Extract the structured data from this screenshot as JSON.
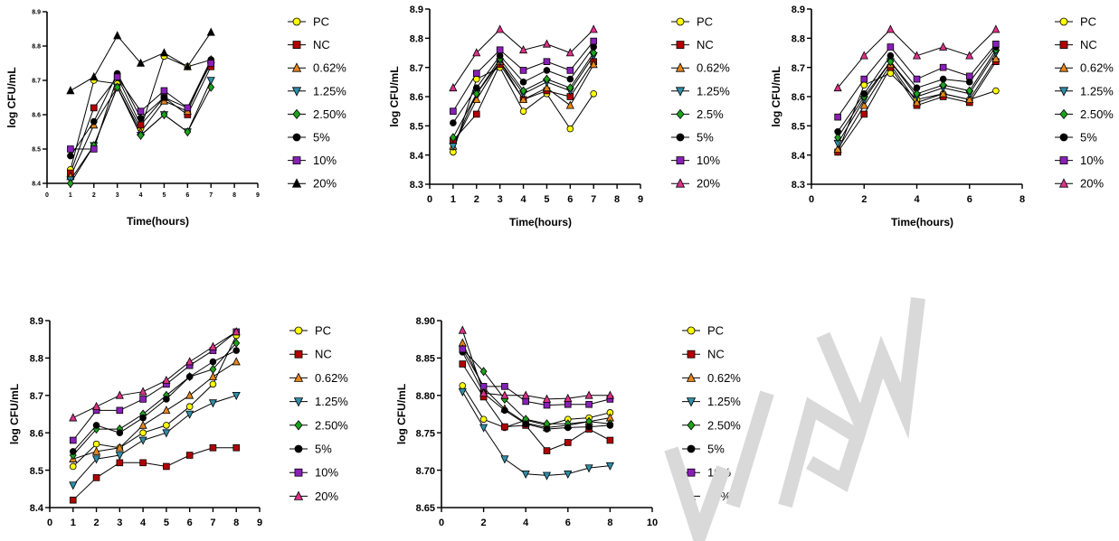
{
  "colors": {
    "PC": "#FFFF00",
    "NC": "#B30000",
    "0.62%": "#E8861A",
    "1.25%": "#2E8FA8",
    "2.5%": "#1BA31B",
    "5%": "#000000",
    "10%": "#8A1FB8",
    "20%": "#E0318A",
    "20%_chart1": "#000000",
    "line": "#000000",
    "watermark": "#D9D9D9"
  },
  "chart_data": [
    {
      "type": "line",
      "title": "",
      "xlabel": "Time(hours)",
      "ylabel": "log CFU/mL",
      "xlim": [
        0,
        9
      ],
      "ylim": [
        8.4,
        8.9
      ],
      "xticks": [
        "0",
        "1",
        "2",
        "3",
        "4",
        "5",
        "6",
        "7",
        "8",
        "9"
      ],
      "yticks": [
        "8.4",
        "8.5",
        "8.6",
        "8.7",
        "8.8",
        "8.9"
      ],
      "legend_position": "right",
      "x": [
        1,
        2,
        3,
        4,
        5,
        6,
        7
      ],
      "series": [
        {
          "name": "PC",
          "marker": "circle",
          "color_key": "PC",
          "values": [
            8.44,
            8.7,
            8.69,
            8.56,
            8.77,
            8.74,
            8.76
          ]
        },
        {
          "name": "NC",
          "marker": "square",
          "color_key": "NC",
          "values": [
            8.43,
            8.62,
            8.71,
            8.57,
            8.65,
            8.6,
            8.74
          ]
        },
        {
          "name": "0.62%",
          "marker": "triangle-up",
          "color_key": "0.62%",
          "values": [
            8.42,
            8.57,
            8.68,
            8.55,
            8.64,
            8.61,
            8.76
          ]
        },
        {
          "name": "1.25%",
          "marker": "triangle-down",
          "color_key": "1.25%",
          "values": [
            8.41,
            8.51,
            8.68,
            8.54,
            8.6,
            8.55,
            8.7
          ]
        },
        {
          "name": "2.50%",
          "marker": "diamond",
          "color_key": "2.5%",
          "values": [
            8.4,
            8.51,
            8.68,
            8.54,
            8.6,
            8.55,
            8.68
          ]
        },
        {
          "name": "5%",
          "marker": "circle",
          "color_key": "5%",
          "values": [
            8.48,
            8.58,
            8.72,
            8.59,
            8.65,
            8.62,
            8.76
          ]
        },
        {
          "name": "10%",
          "marker": "square",
          "color_key": "10%",
          "values": [
            8.5,
            8.5,
            8.71,
            8.61,
            8.67,
            8.62,
            8.75
          ]
        },
        {
          "name": "20%",
          "marker": "triangle-up",
          "color_key": "20%_chart1",
          "values": [
            8.67,
            8.71,
            8.83,
            8.75,
            8.78,
            8.74,
            8.84
          ]
        }
      ]
    },
    {
      "type": "line",
      "title": "",
      "xlabel": "Time(hours)",
      "ylabel": "log CFU/mL",
      "xlim": [
        0,
        9
      ],
      "ylim": [
        8.3,
        8.9
      ],
      "xticks": [
        "0",
        "1",
        "2",
        "3",
        "4",
        "5",
        "6",
        "7",
        "8",
        "9"
      ],
      "yticks": [
        "8.3",
        "8.4",
        "8.5",
        "8.6",
        "8.7",
        "8.8",
        "8.9"
      ],
      "legend_position": "right",
      "x": [
        1,
        2,
        3,
        4,
        5,
        6,
        7
      ],
      "series": [
        {
          "name": "PC",
          "marker": "circle",
          "color_key": "PC",
          "values": [
            8.41,
            8.66,
            8.7,
            8.55,
            8.61,
            8.49,
            8.61
          ]
        },
        {
          "name": "NC",
          "marker": "square",
          "color_key": "NC",
          "values": [
            8.45,
            8.54,
            8.71,
            8.59,
            8.62,
            8.6,
            8.72
          ]
        },
        {
          "name": "0.62%",
          "marker": "triangle-up",
          "color_key": "0.62%",
          "values": [
            8.43,
            8.59,
            8.72,
            8.59,
            8.63,
            8.57,
            8.71
          ]
        },
        {
          "name": "1.25%",
          "marker": "triangle-down",
          "color_key": "1.25%",
          "values": [
            8.43,
            8.61,
            8.72,
            8.61,
            8.65,
            8.62,
            8.74
          ]
        },
        {
          "name": "2.5%",
          "marker": "diamond",
          "color_key": "2.5%",
          "values": [
            8.46,
            8.61,
            8.73,
            8.62,
            8.66,
            8.63,
            8.75
          ]
        },
        {
          "name": "5%",
          "marker": "circle",
          "color_key": "5%",
          "values": [
            8.51,
            8.63,
            8.74,
            8.65,
            8.69,
            8.66,
            8.77
          ]
        },
        {
          "name": "10%",
          "marker": "square",
          "color_key": "10%",
          "values": [
            8.55,
            8.68,
            8.76,
            8.69,
            8.72,
            8.69,
            8.79
          ]
        },
        {
          "name": "20%",
          "marker": "triangle-up",
          "color_key": "20%",
          "values": [
            8.63,
            8.75,
            8.83,
            8.76,
            8.78,
            8.75,
            8.83
          ]
        }
      ]
    },
    {
      "type": "line",
      "title": "",
      "xlabel": "Time(hours)",
      "ylabel": "log CFU/mL",
      "xlim": [
        0,
        8
      ],
      "ylim": [
        8.3,
        8.9
      ],
      "xticks": [
        "0",
        "2",
        "4",
        "6",
        "8"
      ],
      "yticks": [
        "8.3",
        "8.4",
        "8.5",
        "8.6",
        "8.7",
        "8.8",
        "8.9"
      ],
      "legend_position": "right",
      "x": [
        1,
        2,
        3,
        4,
        5,
        6,
        7
      ],
      "series": [
        {
          "name": "PC",
          "marker": "circle",
          "color_key": "PC",
          "values": [
            8.41,
            8.64,
            8.68,
            8.59,
            8.61,
            8.59,
            8.62
          ]
        },
        {
          "name": "NC",
          "marker": "square",
          "color_key": "NC",
          "values": [
            8.41,
            8.54,
            8.7,
            8.57,
            8.6,
            8.58,
            8.72
          ]
        },
        {
          "name": "0.62%",
          "marker": "triangle-up",
          "color_key": "0.62%",
          "values": [
            8.42,
            8.57,
            8.71,
            8.58,
            8.61,
            8.59,
            8.73
          ]
        },
        {
          "name": "1.25%",
          "marker": "triangle-down",
          "color_key": "1.25%",
          "values": [
            8.44,
            8.59,
            8.72,
            8.6,
            8.63,
            8.61,
            8.75
          ]
        },
        {
          "name": "2.50%",
          "marker": "diamond",
          "color_key": "2.5%",
          "values": [
            8.46,
            8.6,
            8.72,
            8.61,
            8.64,
            8.62,
            8.76
          ]
        },
        {
          "name": "5%",
          "marker": "circle",
          "color_key": "5%",
          "values": [
            8.48,
            8.61,
            8.74,
            8.63,
            8.66,
            8.65,
            8.77
          ]
        },
        {
          "name": "10%",
          "marker": "square",
          "color_key": "10%",
          "values": [
            8.53,
            8.66,
            8.77,
            8.66,
            8.7,
            8.67,
            8.78
          ]
        },
        {
          "name": "20%",
          "marker": "triangle-up",
          "color_key": "20%",
          "values": [
            8.63,
            8.74,
            8.83,
            8.74,
            8.77,
            8.74,
            8.83
          ]
        }
      ]
    },
    {
      "type": "line",
      "title": "",
      "xlabel": "Time(hours)",
      "ylabel": "log CFU/mL",
      "xlim": [
        0,
        9
      ],
      "ylim": [
        8.4,
        8.9
      ],
      "xticks": [
        "0",
        "1",
        "2",
        "3",
        "4",
        "5",
        "6",
        "7",
        "8",
        "9"
      ],
      "yticks": [
        "8.4",
        "8.5",
        "8.6",
        "8.7",
        "8.8",
        "8.9"
      ],
      "legend_position": "right",
      "x": [
        1,
        2,
        3,
        4,
        5,
        6,
        7,
        8
      ],
      "series": [
        {
          "name": "PC",
          "marker": "circle",
          "color_key": "PC",
          "values": [
            8.51,
            8.57,
            8.56,
            8.6,
            8.62,
            8.67,
            8.73,
            8.86
          ]
        },
        {
          "name": "NC",
          "marker": "square",
          "color_key": "NC",
          "values": [
            8.42,
            8.48,
            8.52,
            8.52,
            8.51,
            8.54,
            8.56,
            8.56
          ]
        },
        {
          "name": "0.62%",
          "marker": "triangle-up",
          "color_key": "0.62%",
          "values": [
            8.53,
            8.55,
            8.56,
            8.62,
            8.66,
            8.7,
            8.75,
            8.79
          ]
        },
        {
          "name": "1.25%",
          "marker": "triangle-down",
          "color_key": "1.25%",
          "values": [
            8.46,
            8.53,
            8.54,
            8.58,
            8.6,
            8.65,
            8.68,
            8.7
          ]
        },
        {
          "name": "2.50%",
          "marker": "diamond",
          "color_key": "2.5%",
          "values": [
            8.54,
            8.61,
            8.61,
            8.65,
            8.7,
            8.75,
            8.77,
            8.84
          ]
        },
        {
          "name": "5%",
          "marker": "circle",
          "color_key": "5%",
          "values": [
            8.55,
            8.62,
            8.6,
            8.64,
            8.69,
            8.75,
            8.79,
            8.82
          ]
        },
        {
          "name": "10%",
          "marker": "square",
          "color_key": "10%",
          "values": [
            8.58,
            8.66,
            8.66,
            8.69,
            8.73,
            8.78,
            8.82,
            8.87
          ]
        },
        {
          "name": "20%",
          "marker": "triangle-up",
          "color_key": "20%",
          "values": [
            8.64,
            8.67,
            8.7,
            8.71,
            8.74,
            8.79,
            8.83,
            8.87
          ]
        }
      ]
    },
    {
      "type": "line",
      "title": "",
      "xlabel": "Time(hours)",
      "ylabel": "log CFU/mL",
      "xlim": [
        0,
        10
      ],
      "ylim": [
        8.65,
        8.9
      ],
      "xticks": [
        "0",
        "2",
        "4",
        "6",
        "8",
        "10"
      ],
      "yticks": [
        "8.65",
        "8.70",
        "8.75",
        "8.80",
        "8.85",
        "8.90"
      ],
      "legend_position": "right",
      "x": [
        1,
        2,
        3,
        4,
        5,
        6,
        7,
        8
      ],
      "series": [
        {
          "name": "PC",
          "marker": "circle",
          "color_key": "PC",
          "values": [
            8.813,
            8.768,
            8.757,
            8.767,
            8.76,
            8.768,
            8.77,
            8.777
          ]
        },
        {
          "name": "NC",
          "marker": "square",
          "color_key": "NC",
          "values": [
            8.842,
            8.798,
            8.758,
            8.76,
            8.726,
            8.737,
            8.755,
            8.74
          ]
        },
        {
          "name": "0.62%",
          "marker": "triangle-up",
          "color_key": "0.62%",
          "values": [
            8.87,
            8.81,
            8.782,
            8.763,
            8.757,
            8.76,
            8.765,
            8.77
          ]
        },
        {
          "name": "1.25%",
          "marker": "triangle-down",
          "color_key": "1.25%",
          "values": [
            8.805,
            8.757,
            8.715,
            8.695,
            8.693,
            8.695,
            8.703,
            8.706
          ]
        },
        {
          "name": "2.50%",
          "marker": "diamond",
          "color_key": "2.5%",
          "values": [
            8.862,
            8.832,
            8.795,
            8.768,
            8.762,
            8.762,
            8.765,
            8.762
          ]
        },
        {
          "name": "5%",
          "marker": "circle",
          "color_key": "5%",
          "values": [
            8.858,
            8.803,
            8.78,
            8.762,
            8.755,
            8.757,
            8.758,
            8.76
          ]
        },
        {
          "name": "10%",
          "marker": "square",
          "color_key": "10%",
          "values": [
            8.862,
            8.812,
            8.812,
            8.792,
            8.787,
            8.788,
            8.788,
            8.795
          ]
        },
        {
          "name": "20%",
          "marker": "triangle-up",
          "color_key": "20%",
          "values": [
            8.887,
            8.803,
            8.8,
            8.8,
            8.795,
            8.796,
            8.8,
            8.8
          ]
        }
      ]
    }
  ]
}
